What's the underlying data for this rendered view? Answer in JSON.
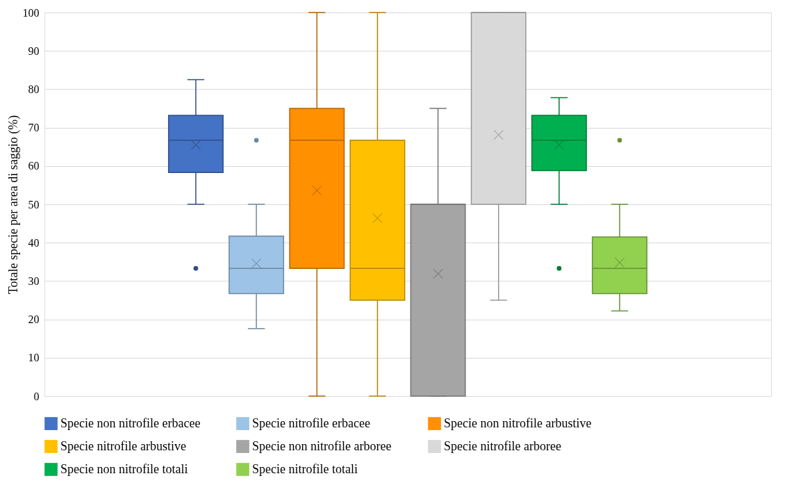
{
  "chart_data": {
    "type": "box",
    "ylabel": "Totale specie per area di saggio (%)",
    "categories": [
      null
    ],
    "ylim": [
      0,
      100
    ],
    "yticks": [
      0,
      10,
      20,
      30,
      40,
      50,
      60,
      70,
      80,
      90,
      100
    ],
    "grid": "y",
    "legend": "bottom",
    "series": [
      {
        "name": "Specie non nitrofile erbacee",
        "color": "#4472c4",
        "boxes": [
          {
            "low": 50,
            "q1": 58.3,
            "median": 66.7,
            "q3": 73.2,
            "high": 82.5,
            "mean": 65.5,
            "outliers": [
              33.3
            ]
          }
        ]
      },
      {
        "name": "Specie nitrofile erbacee",
        "color": "#9dc3e6",
        "boxes": [
          {
            "low": 17.6,
            "q1": 26.7,
            "median": 33.3,
            "q3": 41.7,
            "high": 50,
            "mean": 34.6,
            "outliers": [
              66.7
            ]
          }
        ]
      },
      {
        "name": "Specie non nitrofile arbustive",
        "color": "#ff9000",
        "boxes": [
          {
            "low": 0,
            "q1": 33.3,
            "median": 66.7,
            "q3": 75,
            "high": 100,
            "mean": 53.6
          }
        ]
      },
      {
        "name": "Specie nitrofile arbustive",
        "color": "#ffc000",
        "boxes": [
          {
            "low": 0,
            "q1": 25,
            "median": 33.3,
            "q3": 66.7,
            "high": 100,
            "mean": 46.4
          }
        ]
      },
      {
        "name": "Specie non nitrofile arboree",
        "color": "#a5a5a5",
        "boxes": [
          {
            "low": 0,
            "q1": 0,
            "median": 50,
            "q3": 50,
            "high": 75,
            "mean": 31.9
          }
        ]
      },
      {
        "name": "Specie nitrofile arboree",
        "color": "#d9d9d9",
        "boxes": [
          {
            "low": 25,
            "q1": 50,
            "median": 100,
            "q3": 100,
            "high": 100,
            "mean": 68.1
          }
        ]
      },
      {
        "name": "Specie non nitrofile totali",
        "color": "#00b050",
        "boxes": [
          {
            "low": 50,
            "q1": 58.8,
            "median": 66.7,
            "q3": 73.2,
            "high": 77.8,
            "mean": 65.5,
            "outliers": [
              33.3
            ]
          }
        ]
      },
      {
        "name": "Specie nitrofile totali",
        "color": "#92d050",
        "boxes": [
          {
            "low": 22.2,
            "q1": 26.7,
            "median": 33.3,
            "q3": 41.5,
            "high": 50,
            "mean": 34.8,
            "outliers": [
              66.7
            ]
          }
        ]
      }
    ]
  }
}
